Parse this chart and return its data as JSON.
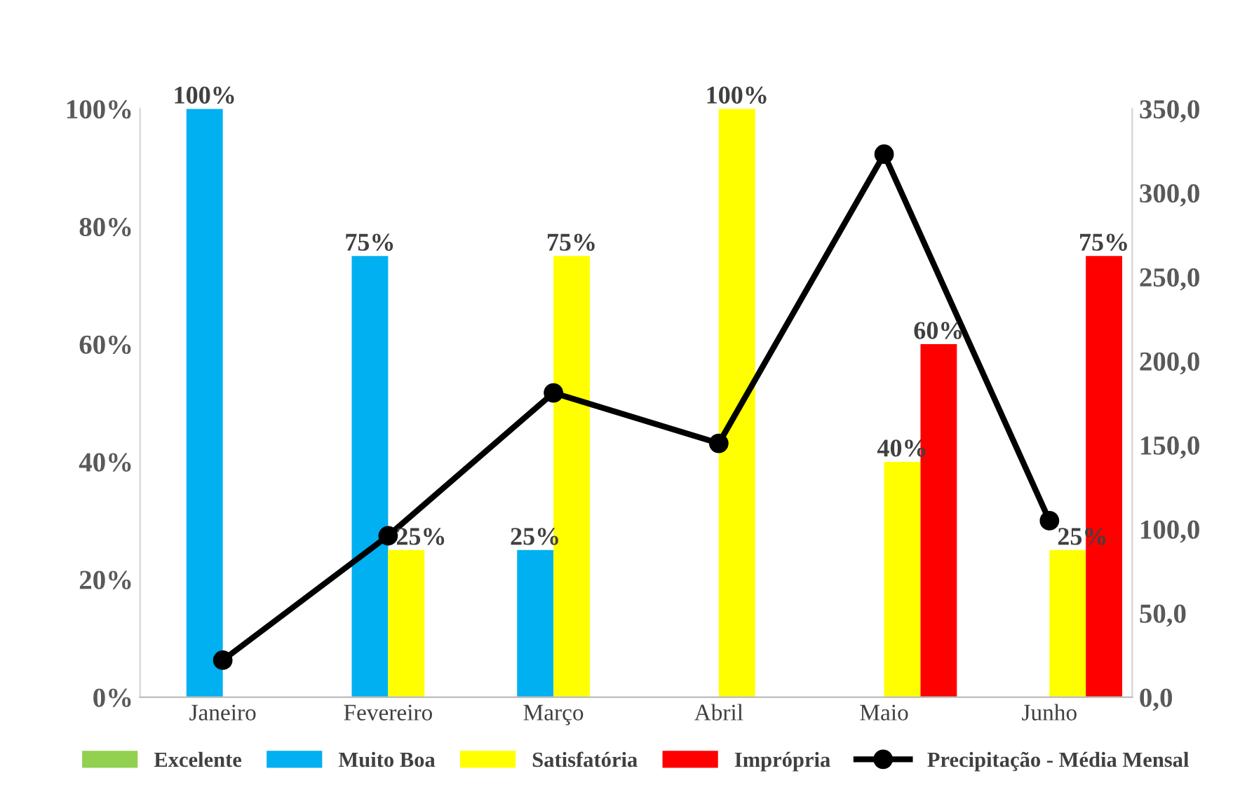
{
  "chart_data": {
    "type": "bar",
    "categories": [
      "Janeiro",
      "Fevereiro",
      "Março",
      "Abril",
      "Maio",
      "Junho"
    ],
    "series": [
      {
        "name": "Excelente",
        "color": "#92d050",
        "values": [
          null,
          null,
          null,
          null,
          null,
          null
        ]
      },
      {
        "name": "Muito Boa",
        "color": "#00b0f0",
        "values": [
          100,
          75,
          25,
          null,
          null,
          null
        ],
        "value_labels": [
          "100%",
          "75%",
          "25%",
          null,
          null,
          null
        ]
      },
      {
        "name": "Satisfatória",
        "color": "#ffff00",
        "values": [
          null,
          25,
          75,
          100,
          40,
          25
        ],
        "value_labels": [
          null,
          "25%",
          "75%",
          "100%",
          "40%",
          "25%"
        ]
      },
      {
        "name": "Imprópria",
        "color": "#ff0000",
        "values": [
          null,
          null,
          null,
          null,
          60,
          75
        ],
        "value_labels": [
          null,
          null,
          null,
          null,
          "60%",
          "75%"
        ]
      },
      {
        "name": "Precipitação - Média Mensal",
        "type": "line",
        "axis": "y2",
        "color": "#000000",
        "marker": "circle",
        "values": [
          22,
          96,
          181,
          151,
          323,
          105
        ]
      }
    ],
    "ylim": [
      0,
      100
    ],
    "yticks": [
      {
        "value": 0,
        "label": "0%"
      },
      {
        "value": 20,
        "label": "20%"
      },
      {
        "value": 40,
        "label": "40%"
      },
      {
        "value": 60,
        "label": "60%"
      },
      {
        "value": 80,
        "label": "80%"
      },
      {
        "value": 100,
        "label": "100%"
      }
    ],
    "y2lim": [
      0,
      350
    ],
    "y2ticks": [
      {
        "value": 0,
        "label": "0,0"
      },
      {
        "value": 50,
        "label": "50,0"
      },
      {
        "value": 100,
        "label": "100,0"
      },
      {
        "value": 150,
        "label": "150,0"
      },
      {
        "value": 200,
        "label": "200,0"
      },
      {
        "value": 250,
        "label": "250,0"
      },
      {
        "value": 300,
        "label": "300,0"
      },
      {
        "value": 350,
        "label": "350,0"
      }
    ],
    "grid": false,
    "legend": "bottom"
  }
}
